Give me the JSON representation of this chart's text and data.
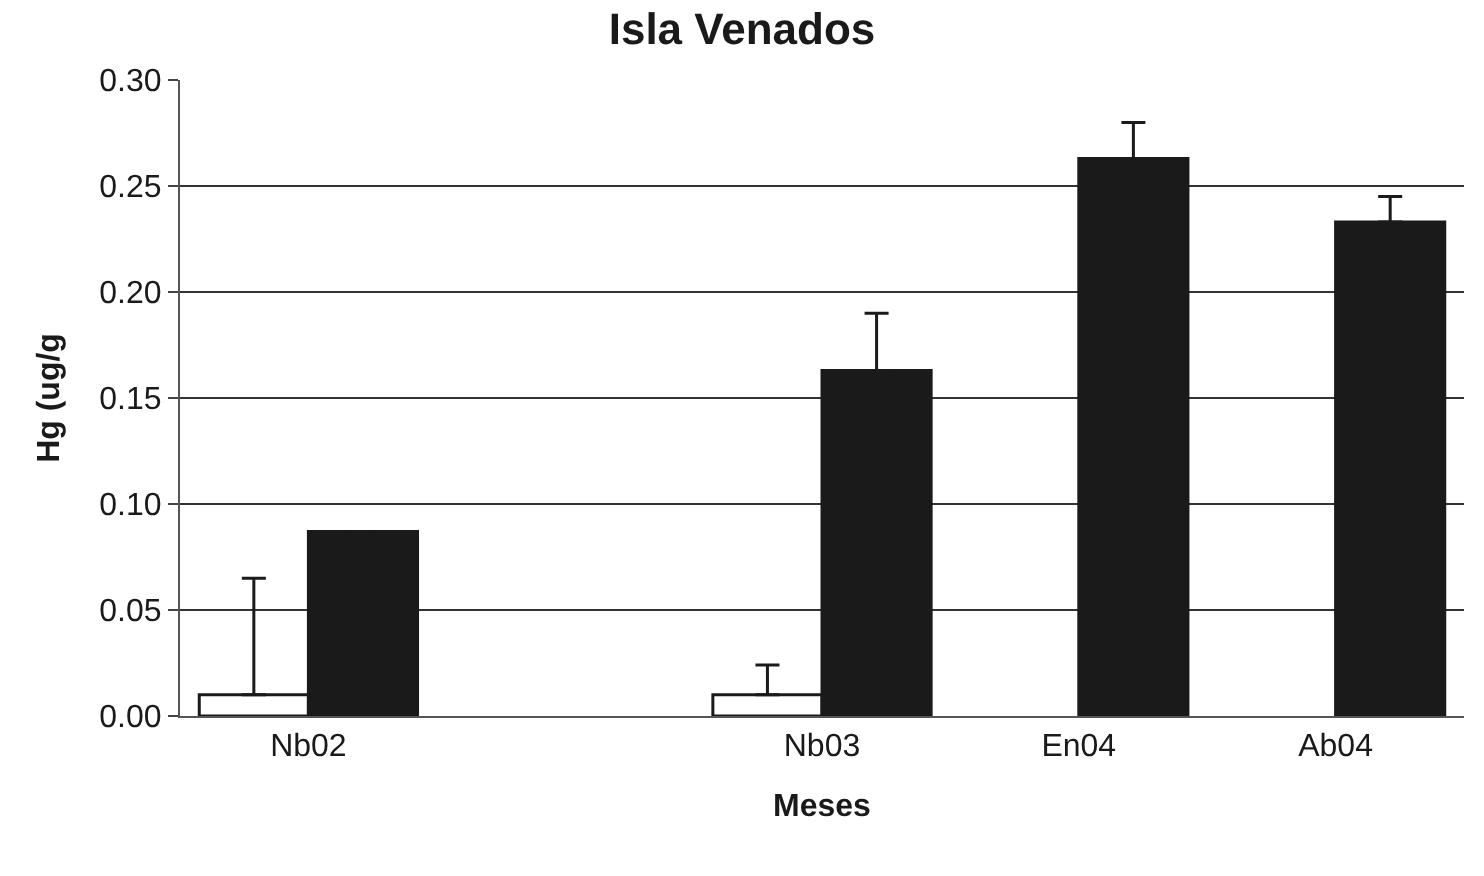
{
  "chart_data": {
    "type": "bar",
    "title": "Isla Venados",
    "xlabel": "Meses",
    "ylabel": "Hg (ug/g",
    "categories": [
      "Nb02",
      null,
      "Nb03",
      "En04",
      "Ab04"
    ],
    "series": [
      {
        "color": "#ffffff",
        "values": [
          0.01,
          null,
          0.01,
          null,
          null
        ],
        "errors": [
          [
            0.01,
            0.065
          ],
          null,
          [
            0.01,
            0.024
          ],
          null,
          null
        ]
      },
      {
        "color": "#1a1a1a",
        "values": [
          0.087,
          null,
          0.163,
          0.263,
          0.233
        ],
        "errors": [
          null,
          null,
          [
            0.163,
            0.19
          ],
          [
            0.263,
            0.28
          ],
          [
            0.233,
            0.245
          ]
        ]
      }
    ],
    "ylim": [
      0,
      0.3
    ],
    "yticks": [
      {
        "value": 0,
        "label": "0.00"
      },
      {
        "value": 0.05,
        "label": "0.05"
      },
      {
        "value": 0.1,
        "label": "0.10"
      },
      {
        "value": 0.15,
        "label": "0.15"
      },
      {
        "value": 0.2,
        "label": "0.20"
      },
      {
        "value": 0.25,
        "label": "0.25"
      },
      {
        "value": 0.3,
        "label": "0.30"
      }
    ],
    "grid": "y",
    "legend": false
  }
}
